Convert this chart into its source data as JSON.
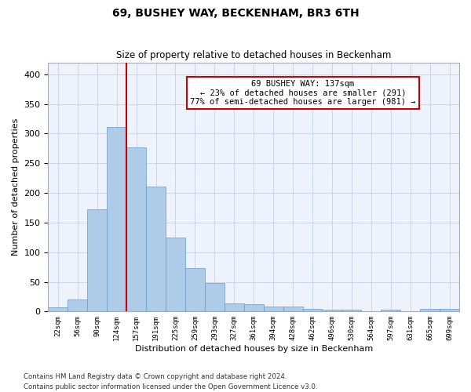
{
  "title": "69, BUSHEY WAY, BECKENHAM, BR3 6TH",
  "subtitle": "Size of property relative to detached houses in Beckenham",
  "xlabel": "Distribution of detached houses by size in Beckenham",
  "ylabel": "Number of detached properties",
  "bin_labels": [
    "22sqm",
    "56sqm",
    "90sqm",
    "124sqm",
    "157sqm",
    "191sqm",
    "225sqm",
    "259sqm",
    "293sqm",
    "327sqm",
    "361sqm",
    "394sqm",
    "428sqm",
    "462sqm",
    "496sqm",
    "530sqm",
    "564sqm",
    "597sqm",
    "631sqm",
    "665sqm",
    "699sqm"
  ],
  "bar_heights": [
    7,
    20,
    172,
    311,
    277,
    210,
    125,
    73,
    48,
    13,
    12,
    8,
    8,
    5,
    3,
    3,
    0,
    3,
    0,
    4,
    4
  ],
  "bar_color": "#aecbe8",
  "bar_edge_color": "#6699cc",
  "vline_color": "#cc0000",
  "annotation_text": "69 BUSHEY WAY: 137sqm\n← 23% of detached houses are smaller (291)\n77% of semi-detached houses are larger (981) →",
  "annotation_box_color": "#ffffff",
  "annotation_box_edge_color": "#cc0000",
  "ylim": [
    0,
    420
  ],
  "yticks": [
    0,
    50,
    100,
    150,
    200,
    250,
    300,
    350,
    400
  ],
  "footer_line1": "Contains HM Land Registry data © Crown copyright and database right 2024.",
  "footer_line2": "Contains public sector information licensed under the Open Government Licence v3.0.",
  "background_color": "#eef2fb",
  "grid_color": "#c8d0e8"
}
